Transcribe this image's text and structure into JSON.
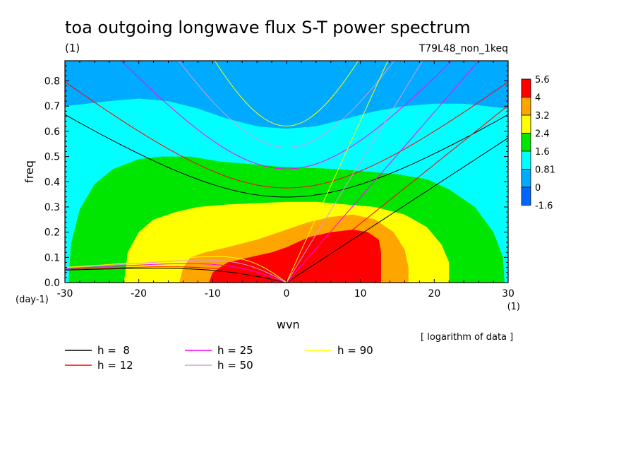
{
  "header": {
    "title": "toa outgoing longwave flux S-T power spectrum",
    "units": "(1)",
    "experiment": "T79L48_non_1keq"
  },
  "chart_data": {
    "type": "heatmap",
    "title": "toa outgoing longwave flux S-T power spectrum",
    "subtitle": "T79L48_non_1keq",
    "value_units": "(1)",
    "xlabel": "wvn",
    "x_units": "(1)",
    "ylabel": "freq",
    "y_units": "(day-1)",
    "xlim": [
      -30,
      30
    ],
    "ylim": [
      0,
      0.88
    ],
    "x_ticks": [
      -30,
      -20,
      -10,
      0,
      10,
      20,
      30
    ],
    "x_tick_labels": [
      "-30",
      "-20",
      "-10",
      "0",
      "10",
      "20",
      "30"
    ],
    "y_ticks": [
      0,
      0.1,
      0.2,
      0.3,
      0.4,
      0.5,
      0.6,
      0.7,
      0.8
    ],
    "y_tick_labels": [
      "0.0",
      "0.1",
      "0.2",
      "0.3",
      "0.4",
      "0.5",
      "0.6",
      "0.7",
      "0.8"
    ],
    "note": "[ logarithm of data ]",
    "colorbar": {
      "labels": [
        "5.6",
        "4",
        "3.2",
        "2.4",
        "1.6",
        "0.81",
        "0",
        "-1.6"
      ],
      "colors": [
        "#ff0000",
        "#ffa500",
        "#ffff00",
        "#00e600",
        "#00ffff",
        "#00aaff",
        "#0066ff"
      ]
    },
    "contour_levels": [
      -1.6,
      0,
      0.81,
      1.6,
      2.4,
      3.2,
      4,
      5.6
    ],
    "fill_levels": [
      {
        "level": 0,
        "color": "#00aaff",
        "polygon": [
          [
            -30,
            0.88
          ],
          [
            30,
            0.88
          ],
          [
            30,
            0
          ],
          [
            -30,
            0
          ]
        ]
      },
      {
        "level": 0.81,
        "color": "#00ffff",
        "polygon": [
          [
            -30,
            0.7
          ],
          [
            -27,
            0.71
          ],
          [
            -24,
            0.72
          ],
          [
            -20,
            0.73
          ],
          [
            -16,
            0.72
          ],
          [
            -12,
            0.69
          ],
          [
            -8,
            0.65
          ],
          [
            -4,
            0.62
          ],
          [
            0,
            0.61
          ],
          [
            4,
            0.62
          ],
          [
            8,
            0.65
          ],
          [
            12,
            0.68
          ],
          [
            16,
            0.7
          ],
          [
            20,
            0.71
          ],
          [
            24,
            0.71
          ],
          [
            27,
            0.7
          ],
          [
            30,
            0.69
          ],
          [
            30,
            0
          ],
          [
            -30,
            0
          ]
        ]
      },
      {
        "level": 1.6,
        "color": "#00e600",
        "polygon": [
          [
            -29.5,
            0
          ],
          [
            -29.2,
            0.15
          ],
          [
            -28,
            0.29
          ],
          [
            -26,
            0.39
          ],
          [
            -23.5,
            0.45
          ],
          [
            -20,
            0.49
          ],
          [
            -17,
            0.5
          ],
          [
            -13,
            0.5
          ],
          [
            -9,
            0.48
          ],
          [
            -5,
            0.47
          ],
          [
            -1,
            0.46
          ],
          [
            3,
            0.455
          ],
          [
            7,
            0.45
          ],
          [
            11,
            0.44
          ],
          [
            15,
            0.43
          ],
          [
            19,
            0.41
          ],
          [
            22,
            0.37
          ],
          [
            25.5,
            0.3
          ],
          [
            28,
            0.2
          ],
          [
            29.3,
            0.1
          ],
          [
            29.5,
            0
          ]
        ]
      },
      {
        "level": 2.4,
        "color": "#ffff00",
        "polygon": [
          [
            -22,
            0
          ],
          [
            -21.5,
            0.12
          ],
          [
            -20,
            0.2
          ],
          [
            -18,
            0.25
          ],
          [
            -15,
            0.28
          ],
          [
            -12,
            0.3
          ],
          [
            -8,
            0.31
          ],
          [
            -4,
            0.315
          ],
          [
            0,
            0.32
          ],
          [
            4,
            0.32
          ],
          [
            8,
            0.31
          ],
          [
            12,
            0.3
          ],
          [
            16,
            0.27
          ],
          [
            19,
            0.22
          ],
          [
            21,
            0.15
          ],
          [
            22,
            0.08
          ],
          [
            22,
            0
          ]
        ]
      },
      {
        "level": 3.2,
        "color": "#ffa500",
        "polygon": [
          [
            -14.5,
            0
          ],
          [
            -14,
            0.06
          ],
          [
            -13,
            0.1
          ],
          [
            -11,
            0.12
          ],
          [
            -8,
            0.14
          ],
          [
            -4,
            0.17
          ],
          [
            0,
            0.21
          ],
          [
            3,
            0.24
          ],
          [
            6,
            0.26
          ],
          [
            9,
            0.27
          ],
          [
            12,
            0.25
          ],
          [
            14.5,
            0.2
          ],
          [
            16,
            0.13
          ],
          [
            16.5,
            0.06
          ],
          [
            16.5,
            0
          ]
        ]
      },
      {
        "level": 4,
        "color": "#ff0000",
        "polygon": [
          [
            -10.5,
            0
          ],
          [
            -10,
            0.04
          ],
          [
            -8,
            0.08
          ],
          [
            -5,
            0.1
          ],
          [
            -2,
            0.12
          ],
          [
            0,
            0.14
          ],
          [
            3,
            0.18
          ],
          [
            6,
            0.2
          ],
          [
            9,
            0.21
          ],
          [
            11,
            0.2
          ],
          [
            12.5,
            0.17
          ],
          [
            12.8,
            0.12
          ],
          [
            12.8,
            0
          ]
        ]
      }
    ],
    "series": [
      {
        "name": "h =  8",
        "color": "#000000",
        "h": 8
      },
      {
        "name": "h = 12",
        "color": "#ff0000",
        "h": 12
      },
      {
        "name": "h = 25",
        "color": "#ff00ff",
        "h": 25
      },
      {
        "name": "h = 50",
        "color": "#dd99dd",
        "h": 50
      },
      {
        "name": "h = 90",
        "color": "#ffff00",
        "h": 90
      }
    ],
    "legend": {
      "placement": "bottom-left"
    }
  }
}
